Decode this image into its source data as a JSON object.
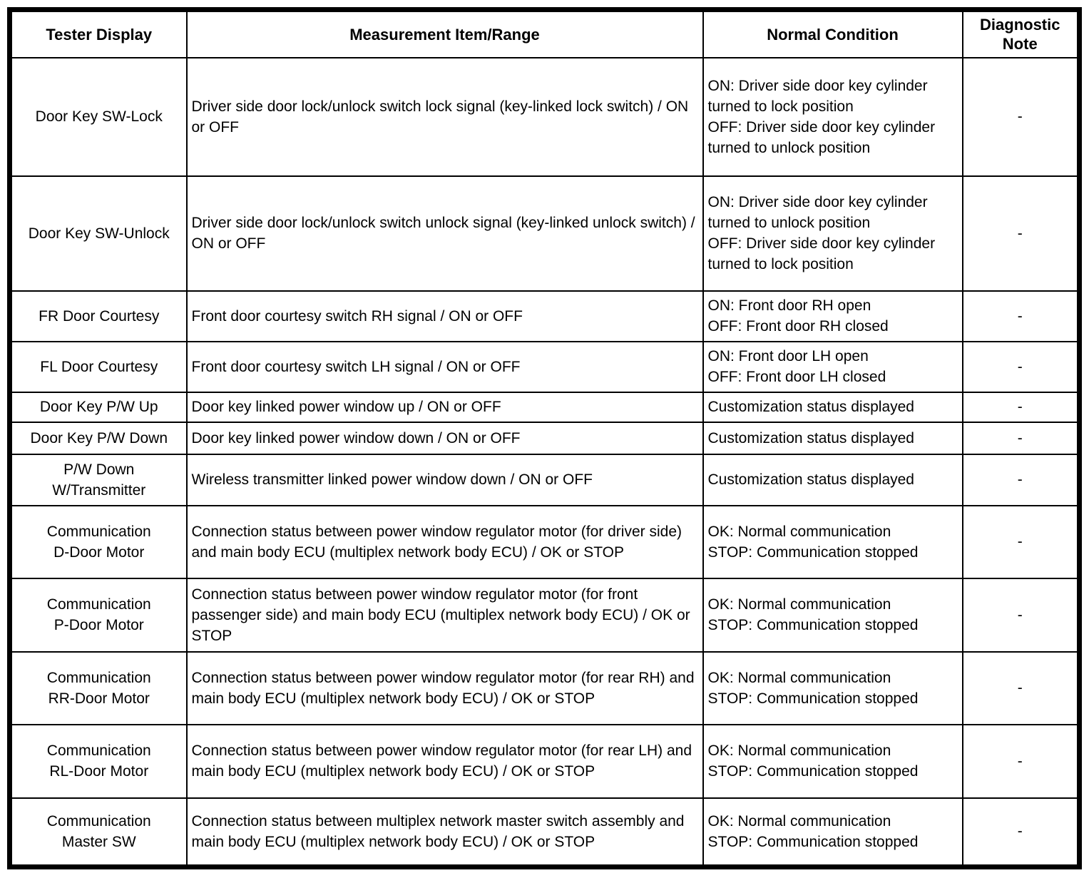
{
  "table": {
    "headers": {
      "tester_display": "Tester Display",
      "measurement": "Measurement Item/Range",
      "normal_condition": "Normal Condition",
      "diagnostic_note": "Diagnostic Note"
    },
    "rows": [
      {
        "tester_display": "Door Key SW-Lock",
        "measurement": "Driver side door lock/unlock switch lock signal (key-linked lock switch) / ON or OFF",
        "normal_condition": [
          "ON: Driver side door key cylinder turned to lock position",
          "OFF: Driver side door key cylinder turned to unlock position"
        ],
        "diagnostic_note": "-"
      },
      {
        "tester_display": "Door Key SW-Unlock",
        "measurement": "Driver side door lock/unlock switch unlock signal (key-linked unlock switch) / ON or OFF",
        "normal_condition": [
          "ON: Driver side door key cylinder turned to unlock position",
          "OFF: Driver side door key cylinder turned to lock position"
        ],
        "diagnostic_note": "-"
      },
      {
        "tester_display": "FR Door Courtesy",
        "measurement": "Front door courtesy switch RH signal / ON or OFF",
        "normal_condition": [
          "ON: Front door RH open",
          "OFF: Front door RH closed"
        ],
        "diagnostic_note": "-"
      },
      {
        "tester_display": "FL Door Courtesy",
        "measurement": "Front door courtesy switch LH signal / ON or OFF",
        "normal_condition": [
          "ON: Front door LH open",
          "OFF: Front door LH closed"
        ],
        "diagnostic_note": "-"
      },
      {
        "tester_display": "Door Key P/W Up",
        "measurement": "Door key linked power window up / ON or OFF",
        "normal_condition": "Customization status displayed",
        "diagnostic_note": "-"
      },
      {
        "tester_display": "Door Key P/W Down",
        "measurement": "Door key linked power window down / ON or OFF",
        "normal_condition": "Customization status displayed",
        "diagnostic_note": "-"
      },
      {
        "tester_display": [
          "P/W Down",
          "W/Transmitter"
        ],
        "measurement": "Wireless transmitter linked power window down / ON or OFF",
        "normal_condition": "Customization status displayed",
        "diagnostic_note": "-"
      },
      {
        "tester_display": [
          "Communication",
          "D-Door Motor"
        ],
        "measurement": "Connection status between power window regulator motor (for driver side) and main body ECU (multiplex network body ECU) / OK or STOP",
        "normal_condition": [
          "OK: Normal communication",
          "STOP: Communication stopped"
        ],
        "diagnostic_note": "-"
      },
      {
        "tester_display": [
          "Communication",
          "P-Door Motor"
        ],
        "measurement": "Connection status between power window regulator motor (for front passenger side) and main body ECU (multiplex network body ECU) / OK or STOP",
        "normal_condition": [
          "OK: Normal communication",
          "STOP: Communication stopped"
        ],
        "diagnostic_note": "-"
      },
      {
        "tester_display": [
          "Communication",
          "RR-Door Motor"
        ],
        "measurement": "Connection status between power window regulator motor (for rear RH) and main body ECU (multiplex network body ECU) / OK or STOP",
        "normal_condition": [
          "OK: Normal communication",
          "STOP: Communication stopped"
        ],
        "diagnostic_note": "-"
      },
      {
        "tester_display": [
          "Communication",
          "RL-Door Motor"
        ],
        "measurement": "Connection status between power window regulator motor (for rear LH) and main body ECU (multiplex network body ECU) / OK or STOP",
        "normal_condition": [
          "OK: Normal communication",
          "STOP: Communication stopped"
        ],
        "diagnostic_note": "-"
      },
      {
        "tester_display": [
          "Communication",
          "Master SW"
        ],
        "measurement": "Connection status between multiplex network master switch assembly and main body ECU (multiplex network body ECU) / OK or STOP",
        "normal_condition": [
          "OK: Normal communication",
          "STOP: Communication stopped"
        ],
        "diagnostic_note": "-"
      }
    ]
  }
}
